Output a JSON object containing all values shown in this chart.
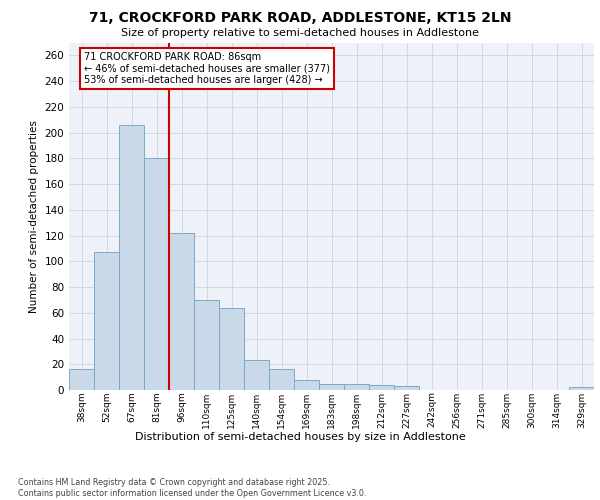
{
  "title1": "71, CROCKFORD PARK ROAD, ADDLESTONE, KT15 2LN",
  "title2": "Size of property relative to semi-detached houses in Addlestone",
  "xlabel": "Distribution of semi-detached houses by size in Addlestone",
  "ylabel": "Number of semi-detached properties",
  "categories": [
    "38sqm",
    "52sqm",
    "67sqm",
    "81sqm",
    "96sqm",
    "110sqm",
    "125sqm",
    "140sqm",
    "154sqm",
    "169sqm",
    "183sqm",
    "198sqm",
    "212sqm",
    "227sqm",
    "242sqm",
    "256sqm",
    "271sqm",
    "285sqm",
    "300sqm",
    "314sqm",
    "329sqm"
  ],
  "values": [
    16,
    107,
    206,
    180,
    122,
    70,
    64,
    23,
    16,
    8,
    5,
    5,
    4,
    3,
    0,
    0,
    0,
    0,
    0,
    0,
    2
  ],
  "bar_color": "#c9d9e8",
  "bar_edge_color": "#7aaac8",
  "grid_color": "#d0d8e8",
  "background_color": "#eef2f8",
  "annotation_line1": "71 CROCKFORD PARK ROAD: 86sqm",
  "annotation_line2": "← 46% of semi-detached houses are smaller (377)",
  "annotation_line3": "53% of semi-detached houses are larger (428) →",
  "annotation_box_color": "#ffffff",
  "annotation_box_edge": "#cc0000",
  "vline_color": "#cc0000",
  "footer_text": "Contains HM Land Registry data © Crown copyright and database right 2025.\nContains public sector information licensed under the Open Government Licence v3.0.",
  "ylim": [
    0,
    270
  ],
  "yticks": [
    0,
    20,
    40,
    60,
    80,
    100,
    120,
    140,
    160,
    180,
    200,
    220,
    240,
    260
  ]
}
